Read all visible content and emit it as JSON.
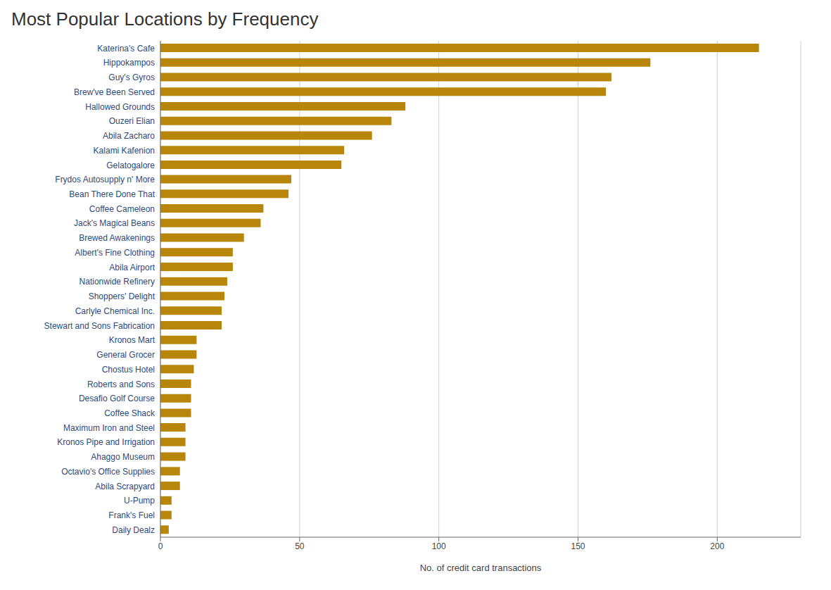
{
  "chart_data": {
    "type": "bar",
    "title": "Most Popular Locations by Frequency",
    "xlabel": "No. of credit card transactions",
    "orientation": "horizontal",
    "categories": [
      "Katerina's Cafe",
      "Hippokampos",
      "Guy's Gyros",
      "Brew've Been Served",
      "Hallowed Grounds",
      "Ouzeri Elian",
      "Abila Zacharo",
      "Kalami Kafenion",
      "Gelatogalore",
      "Frydos Autosupply n' More",
      "Bean There Done That",
      "Coffee Cameleon",
      "Jack's Magical Beans",
      "Brewed Awakenings",
      "Albert's Fine Clothing",
      "Abila Airport",
      "Nationwide Refinery",
      "Shoppers' Delight",
      "Carlyle Chemical Inc.",
      "Stewart and Sons Fabrication",
      "Kronos Mart",
      "General Grocer",
      "Chostus Hotel",
      "Roberts and Sons",
      "Desafio Golf Course",
      "Coffee Shack",
      "Maximum Iron and Steel",
      "Kronos Pipe and Irrigation",
      "Ahaggo Museum",
      "Octavio's Office Supplies",
      "Abila Scrapyard",
      "U-Pump",
      "Frank's Fuel",
      "Daily Dealz"
    ],
    "values": [
      215,
      176,
      162,
      160,
      88,
      83,
      76,
      66,
      65,
      47,
      46,
      37,
      36,
      30,
      26,
      26,
      24,
      23,
      22,
      22,
      13,
      13,
      12,
      11,
      11,
      11,
      9,
      9,
      9,
      7,
      7,
      4,
      4,
      3
    ],
    "color": "#B8860B",
    "xlim": [
      0,
      230
    ],
    "xticks": [
      0,
      50,
      100,
      150,
      200
    ],
    "grid": true
  }
}
